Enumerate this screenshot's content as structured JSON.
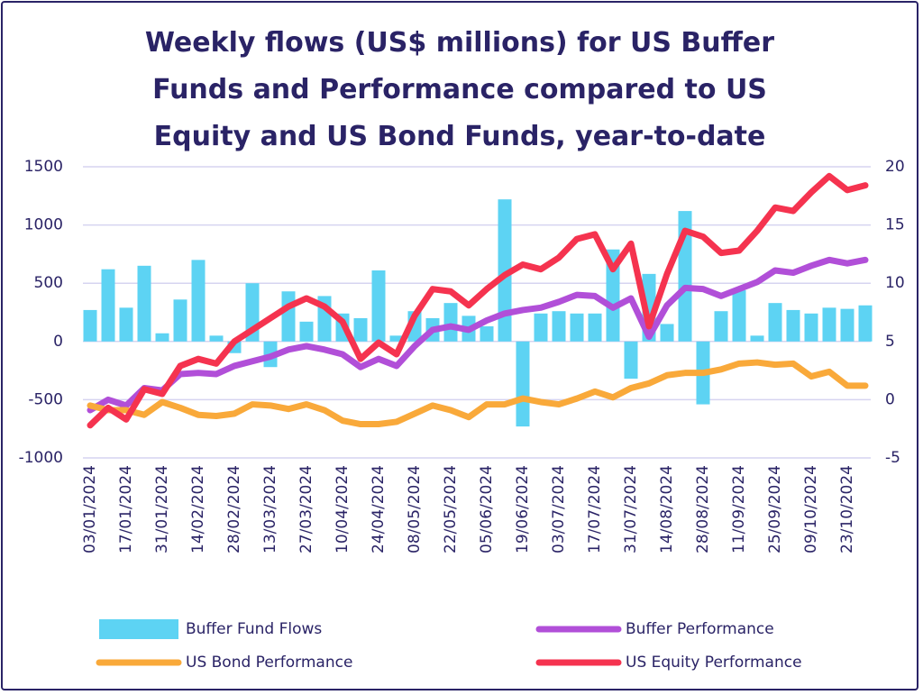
{
  "chart_data": {
    "type": "bar-line",
    "title": "Weekly flows (US$ millions) for US Buffer Funds and Performance compared to US Equity and US Bond Funds, year-to-date",
    "categories": [
      "03/01/2024",
      null,
      "17/01/2024",
      null,
      "31/01/2024",
      null,
      "14/02/2024",
      null,
      "28/02/2024",
      null,
      "13/03/2024",
      null,
      "27/03/2024",
      null,
      "10/04/2024",
      null,
      "24/04/2024",
      null,
      "08/05/2024",
      null,
      "22/05/2024",
      null,
      "05/06/2024",
      null,
      "19/06/2024",
      null,
      "03/07/2024",
      null,
      "17/07/2024",
      null,
      "31/07/2024",
      null,
      "14/08/2024",
      null,
      "28/08/2024",
      null,
      "11/09/2024",
      null,
      "25/09/2024",
      null,
      "09/10/2024",
      null,
      "23/10/2024",
      null
    ],
    "series": [
      {
        "name": "Buffer Fund Flows",
        "type": "bar",
        "color": "#5dd3f3",
        "values": [
          270,
          620,
          290,
          650,
          70,
          360,
          700,
          50,
          -100,
          500,
          -220,
          430,
          170,
          390,
          240,
          200,
          610,
          50,
          260,
          200,
          330,
          220,
          130,
          1220,
          -730,
          240,
          260,
          240,
          240,
          790,
          -320,
          580,
          150,
          1120,
          -540,
          260,
          440,
          50,
          330,
          270,
          240,
          290,
          280,
          310
        ]
      },
      {
        "name": "Buffer Performance",
        "type": "line",
        "axis": "y2",
        "color": "#b14fd8",
        "values": [
          -0.9,
          0,
          -0.5,
          1.0,
          0.8,
          2.2,
          2.3,
          2.2,
          2.9,
          3.3,
          3.7,
          4.3,
          4.6,
          4.3,
          3.9,
          2.8,
          3.5,
          2.9,
          4.6,
          6.0,
          6.3,
          6.0,
          6.8,
          7.4,
          7.7,
          7.9,
          8.4,
          9.0,
          8.9,
          7.9,
          8.7,
          5.4,
          8.1,
          9.6,
          9.5,
          8.9,
          9.5,
          10.1,
          11.1,
          10.9,
          11.5,
          12.0,
          11.7,
          12.0
        ]
      },
      {
        "name": "US Bond Performance",
        "type": "line",
        "axis": "y2",
        "color": "#f9a93a",
        "values": [
          -0.5,
          -0.9,
          -0.9,
          -1.3,
          -0.2,
          -0.7,
          -1.3,
          -1.4,
          -1.2,
          -0.4,
          -0.5,
          -0.8,
          -0.4,
          -0.9,
          -1.8,
          -2.1,
          -2.1,
          -1.9,
          -1.2,
          -0.5,
          -0.9,
          -1.5,
          -0.4,
          -0.4,
          0.1,
          -0.2,
          -0.4,
          0.1,
          0.7,
          0.2,
          1.0,
          1.4,
          2.1,
          2.3,
          2.3,
          2.6,
          3.1,
          3.2,
          3.0,
          3.1,
          2.0,
          2.4,
          1.2,
          1.2
        ]
      },
      {
        "name": "US Equity Performance",
        "type": "line",
        "axis": "y2",
        "color": "#f5334f",
        "values": [
          -2.2,
          -0.7,
          -1.7,
          0.9,
          0.5,
          2.9,
          3.5,
          3.1,
          5.0,
          6.0,
          7.0,
          8.0,
          8.7,
          8.0,
          6.7,
          3.5,
          4.9,
          3.9,
          7.2,
          9.5,
          9.3,
          8.1,
          9.5,
          10.7,
          11.6,
          11.2,
          12.2,
          13.8,
          14.2,
          11.2,
          13.4,
          6.3,
          10.8,
          14.5,
          14.0,
          12.6,
          12.8,
          14.5,
          16.5,
          16.2,
          17.8,
          19.2,
          18.0,
          18.4
        ]
      }
    ],
    "ylim": [
      -1000,
      1500
    ],
    "yticks": [
      -1000,
      -500,
      0,
      500,
      1000,
      1500
    ],
    "y2lim": [
      -5,
      20
    ],
    "y2ticks": [
      -5,
      0,
      5,
      10,
      15,
      20
    ],
    "grid": true
  }
}
